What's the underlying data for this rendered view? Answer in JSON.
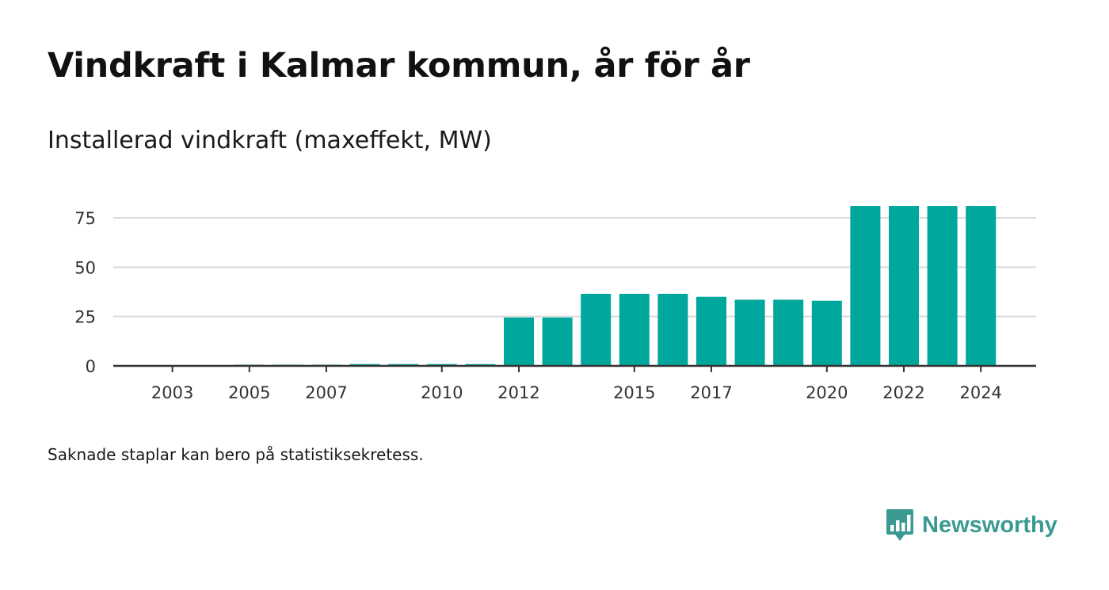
{
  "title": "Vindkraft i Kalmar kommun, år för år",
  "subtitle": "Installerad vindkraft (maxeffekt, MW)",
  "footnote": "Saknade staplar kan bero på statistiksekretess.",
  "brand": {
    "name": "Newsworthy",
    "icon": "bar-chart-speech-bubble-icon",
    "color": "#3a9a92"
  },
  "colors": {
    "bar": "#00a79c",
    "gridline": "#d9d9d9",
    "axis": "#333333"
  },
  "chart_data": {
    "type": "bar",
    "categories": [
      "2002",
      "2003",
      "2004",
      "2005",
      "2006",
      "2007",
      "2008",
      "2009",
      "2010",
      "2011",
      "2012",
      "2013",
      "2014",
      "2015",
      "2016",
      "2017",
      "2018",
      "2019",
      "2020",
      "2021",
      "2022",
      "2023",
      "2024"
    ],
    "values": [
      0,
      0,
      0,
      0.6,
      0.6,
      0.6,
      0.9,
      0.9,
      0.9,
      0.9,
      24.5,
      24.5,
      36.5,
      36.5,
      36.5,
      35,
      33.5,
      33.5,
      33,
      81,
      81,
      81,
      81
    ],
    "x_tick_labels": [
      "2003",
      "2005",
      "2007",
      "2010",
      "2012",
      "2015",
      "2017",
      "2020",
      "2022",
      "2024"
    ],
    "y_ticks": [
      0,
      25,
      50,
      75
    ],
    "ylim": [
      0,
      87
    ],
    "xlabel": "",
    "ylabel": "",
    "grid": true,
    "legend": "none"
  }
}
